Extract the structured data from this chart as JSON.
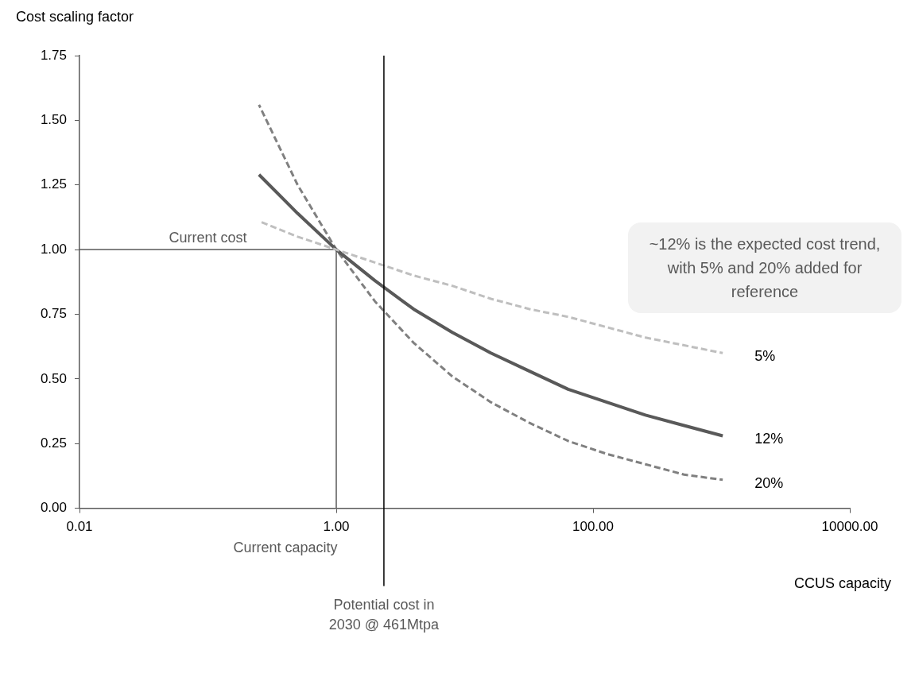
{
  "chart_data": {
    "type": "line",
    "xlabel": "CCUS capacity",
    "ylabel": "Cost scaling factor",
    "log": "x",
    "xlim": [
      0.01,
      10000
    ],
    "xticks": [
      {
        "value": 0.01,
        "label": "0.01"
      },
      {
        "value": 1,
        "label": "1.00"
      },
      {
        "value": 100,
        "label": "100.00"
      },
      {
        "value": 10000,
        "label": "10000.00"
      }
    ],
    "ylim": [
      0,
      1.75
    ],
    "yticks": [
      {
        "value": 0,
        "label": "0.00"
      },
      {
        "value": 0.25,
        "label": "0.25"
      },
      {
        "value": 0.5,
        "label": "0.50"
      },
      {
        "value": 0.75,
        "label": "0.75"
      },
      {
        "value": 1,
        "label": "1.00"
      },
      {
        "value": 1.25,
        "label": "1.25"
      },
      {
        "value": 1.5,
        "label": "1.50"
      },
      {
        "value": 1.75,
        "label": "1.75"
      }
    ],
    "grid": false,
    "legend": false,
    "marker": "none",
    "series": [
      {
        "name": "5%",
        "color": "#bfbfbf",
        "line_style": "dashed",
        "x": [
          0.25,
          0.5,
          1,
          2,
          4,
          8,
          16,
          32,
          64,
          128,
          256,
          512,
          1024
        ],
        "values": [
          1.11,
          1.05,
          1,
          0.95,
          0.9,
          0.86,
          0.81,
          0.77,
          0.74,
          0.7,
          0.66,
          0.63,
          0.6
        ]
      },
      {
        "name": "12%",
        "color": "#595959",
        "line_style": "solid",
        "x": [
          0.25,
          0.5,
          1,
          2,
          4,
          8,
          16,
          32,
          64,
          128,
          256,
          512,
          1024
        ],
        "values": [
          1.29,
          1.14,
          1,
          0.88,
          0.77,
          0.68,
          0.6,
          0.53,
          0.46,
          0.41,
          0.36,
          0.32,
          0.28
        ]
      },
      {
        "name": "20%",
        "color": "#808080",
        "line_style": "dashed",
        "x": [
          0.25,
          0.5,
          1,
          2,
          4,
          8,
          16,
          32,
          64,
          128,
          256,
          512,
          1024
        ],
        "values": [
          1.56,
          1.25,
          1,
          0.8,
          0.64,
          0.51,
          0.41,
          0.33,
          0.26,
          0.21,
          0.17,
          0.13,
          0.11
        ]
      },
      {
        "color": "#595959",
        "line_style": "solid",
        "x": [
          0.01,
          1,
          1
        ],
        "values": [
          1,
          1,
          0
        ]
      }
    ],
    "ref_lines": [
      {
        "axis": "x",
        "value": 2.35,
        "label": "Potential cost in 2030 @ 461Mtpa",
        "color": "#000000"
      }
    ],
    "annotations": [
      "Current cost",
      "Current capacity",
      "~12% is the expected cost trend, with 5% and 20% added for reference"
    ]
  }
}
